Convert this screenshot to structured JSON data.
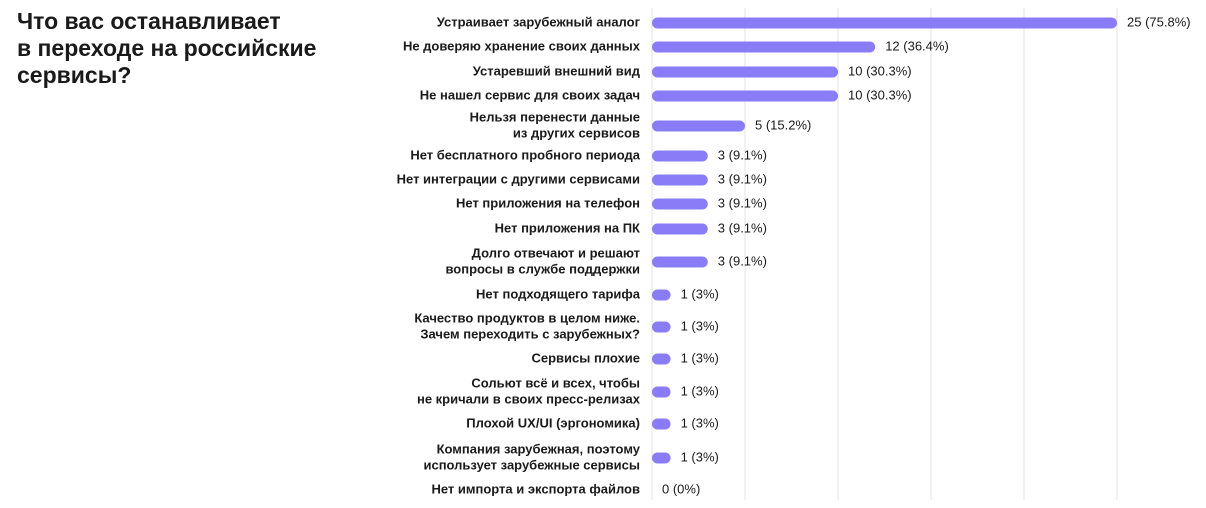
{
  "chart_data": {
    "type": "bar",
    "orientation": "horizontal",
    "title": "Что вас останавливает\nв переходе на российские\nсервисы?",
    "xlim": [
      0,
      33
    ],
    "grid": true,
    "bar_color": "#8a7cf7",
    "grid_color": "#e3e3e3",
    "categories": [
      [
        "Устраивает зарубежный аналог"
      ],
      [
        "Не доверяю хранение своих данных"
      ],
      [
        "Устаревший внешний вид"
      ],
      [
        "Не нашел сервис для своих задач"
      ],
      [
        "Нельзя перенести данные",
        "из других сервисов"
      ],
      [
        "Нет бесплатного пробного периода"
      ],
      [
        "Нет интеграции с другими сервисами"
      ],
      [
        "Нет приложения на телефон"
      ],
      [
        "Нет приложения на ПК"
      ],
      [
        "Долго отвечают и решают",
        "вопросы в службе поддержки"
      ],
      [
        "Нет подходящего тарифа"
      ],
      [
        "Качество продуктов в целом ниже.",
        "Зачем переходить с зарубежных?"
      ],
      [
        "Сервисы плохие"
      ],
      [
        "Сольют всё и всех, чтобы",
        "не кричали в своих пресс-релизах"
      ],
      [
        "Плохой UX/UI (эргономика)"
      ],
      [
        "Компания зарубежная, поэтому",
        "использует зарубежные сервисы"
      ],
      [
        "Нет импорта и экспорта файлов"
      ]
    ],
    "values": [
      25,
      12,
      10,
      10,
      5,
      3,
      3,
      3,
      3,
      3,
      1,
      1,
      1,
      1,
      1,
      1,
      0
    ],
    "value_labels": [
      "25 (75.8%)",
      "12 (36.4%)",
      "10 (30.3%)",
      "10 (30.3%)",
      "5 (15.2%)",
      "3 (9.1%)",
      "3 (9.1%)",
      "3 (9.1%)",
      "3 (9.1%)",
      "3 (9.1%)",
      "1 (3%)",
      "1 (3%)",
      "1 (3%)",
      "1 (3%)",
      "1 (3%)",
      "1 (3%)",
      "0 (0%)"
    ]
  }
}
